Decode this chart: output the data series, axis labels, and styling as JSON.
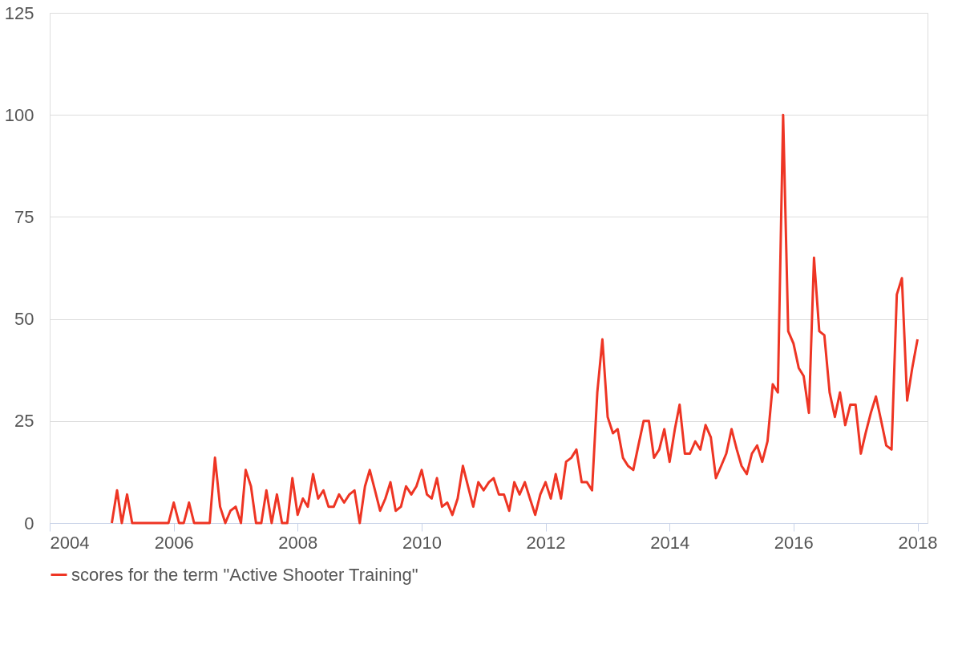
{
  "chart_data": {
    "type": "line",
    "x": [
      "2005-01",
      "2005-02",
      "2005-03",
      "2005-04",
      "2005-05",
      "2005-06",
      "2005-07",
      "2005-08",
      "2005-09",
      "2005-10",
      "2005-11",
      "2005-12",
      "2006-01",
      "2006-02",
      "2006-03",
      "2006-04",
      "2006-05",
      "2006-06",
      "2006-07",
      "2006-08",
      "2006-09",
      "2006-10",
      "2006-11",
      "2006-12",
      "2007-01",
      "2007-02",
      "2007-03",
      "2007-04",
      "2007-05",
      "2007-06",
      "2007-07",
      "2007-08",
      "2007-09",
      "2007-10",
      "2007-11",
      "2007-12",
      "2008-01",
      "2008-02",
      "2008-03",
      "2008-04",
      "2008-05",
      "2008-06",
      "2008-07",
      "2008-08",
      "2008-09",
      "2008-10",
      "2008-11",
      "2008-12",
      "2009-01",
      "2009-02",
      "2009-03",
      "2009-04",
      "2009-05",
      "2009-06",
      "2009-07",
      "2009-08",
      "2009-09",
      "2009-10",
      "2009-11",
      "2009-12",
      "2010-01",
      "2010-02",
      "2010-03",
      "2010-04",
      "2010-05",
      "2010-06",
      "2010-07",
      "2010-08",
      "2010-09",
      "2010-10",
      "2010-11",
      "2010-12",
      "2011-01",
      "2011-02",
      "2011-03",
      "2011-04",
      "2011-05",
      "2011-06",
      "2011-07",
      "2011-08",
      "2011-09",
      "2011-10",
      "2011-11",
      "2011-12",
      "2012-01",
      "2012-02",
      "2012-03",
      "2012-04",
      "2012-05",
      "2012-06",
      "2012-07",
      "2012-08",
      "2012-09",
      "2012-10",
      "2012-11",
      "2012-12",
      "2013-01",
      "2013-02",
      "2013-03",
      "2013-04",
      "2013-05",
      "2013-06",
      "2013-07",
      "2013-08",
      "2013-09",
      "2013-10",
      "2013-11",
      "2013-12",
      "2014-01",
      "2014-02",
      "2014-03",
      "2014-04",
      "2014-05",
      "2014-06",
      "2014-07",
      "2014-08",
      "2014-09",
      "2014-10",
      "2014-11",
      "2014-12",
      "2015-01",
      "2015-02",
      "2015-03",
      "2015-04",
      "2015-05",
      "2015-06",
      "2015-07",
      "2015-08",
      "2015-09",
      "2015-10",
      "2015-11",
      "2015-12",
      "2016-01",
      "2016-02",
      "2016-03",
      "2016-04",
      "2016-05",
      "2016-06",
      "2016-07",
      "2016-08",
      "2016-09",
      "2016-10",
      "2016-11",
      "2016-12",
      "2017-01",
      "2017-02",
      "2017-03",
      "2017-04",
      "2017-05",
      "2017-06",
      "2017-07",
      "2017-08",
      "2017-09",
      "2017-10",
      "2017-11",
      "2017-12",
      "2018-01"
    ],
    "series": [
      {
        "name": "scores for the term \"Active Shooter Training\"",
        "color": "#ee3524",
        "values": [
          0,
          8,
          0,
          7,
          0,
          0,
          0,
          0,
          0,
          0,
          0,
          0,
          5,
          0,
          0,
          5,
          0,
          0,
          0,
          0,
          16,
          4,
          0,
          3,
          4,
          0,
          13,
          9,
          0,
          0,
          8,
          0,
          7,
          0,
          0,
          11,
          2,
          6,
          4,
          12,
          6,
          8,
          4,
          4,
          7,
          5,
          7,
          8,
          0,
          9,
          13,
          8,
          3,
          6,
          10,
          3,
          4,
          9,
          7,
          9,
          13,
          7,
          6,
          11,
          4,
          5,
          2,
          6,
          14,
          9,
          4,
          10,
          8,
          10,
          11,
          7,
          7,
          3,
          10,
          7,
          10,
          6,
          2,
          7,
          10,
          6,
          12,
          6,
          15,
          16,
          18,
          10,
          10,
          8,
          32,
          45,
          26,
          22,
          23,
          16,
          14,
          13,
          19,
          25,
          25,
          16,
          18,
          23,
          15,
          23,
          29,
          17,
          17,
          20,
          18,
          24,
          21,
          11,
          14,
          17,
          23,
          18,
          14,
          12,
          17,
          19,
          15,
          20,
          34,
          32,
          100,
          47,
          44,
          38,
          36,
          27,
          65,
          47,
          46,
          32,
          26,
          32,
          24,
          29,
          29,
          17,
          22,
          27,
          31,
          25,
          19,
          18,
          56,
          60,
          30,
          38,
          45
        ]
      }
    ],
    "xlim": [
      "2004-01",
      "2018-03"
    ],
    "xticks": [
      "2004",
      "2006",
      "2008",
      "2010",
      "2012",
      "2014",
      "2016",
      "2018"
    ],
    "ylim": [
      0,
      125
    ],
    "yticks": [
      0,
      25,
      50,
      75,
      100,
      125
    ],
    "grid": "y",
    "legend": "bottom",
    "marker": "none",
    "line_style": "solid"
  }
}
